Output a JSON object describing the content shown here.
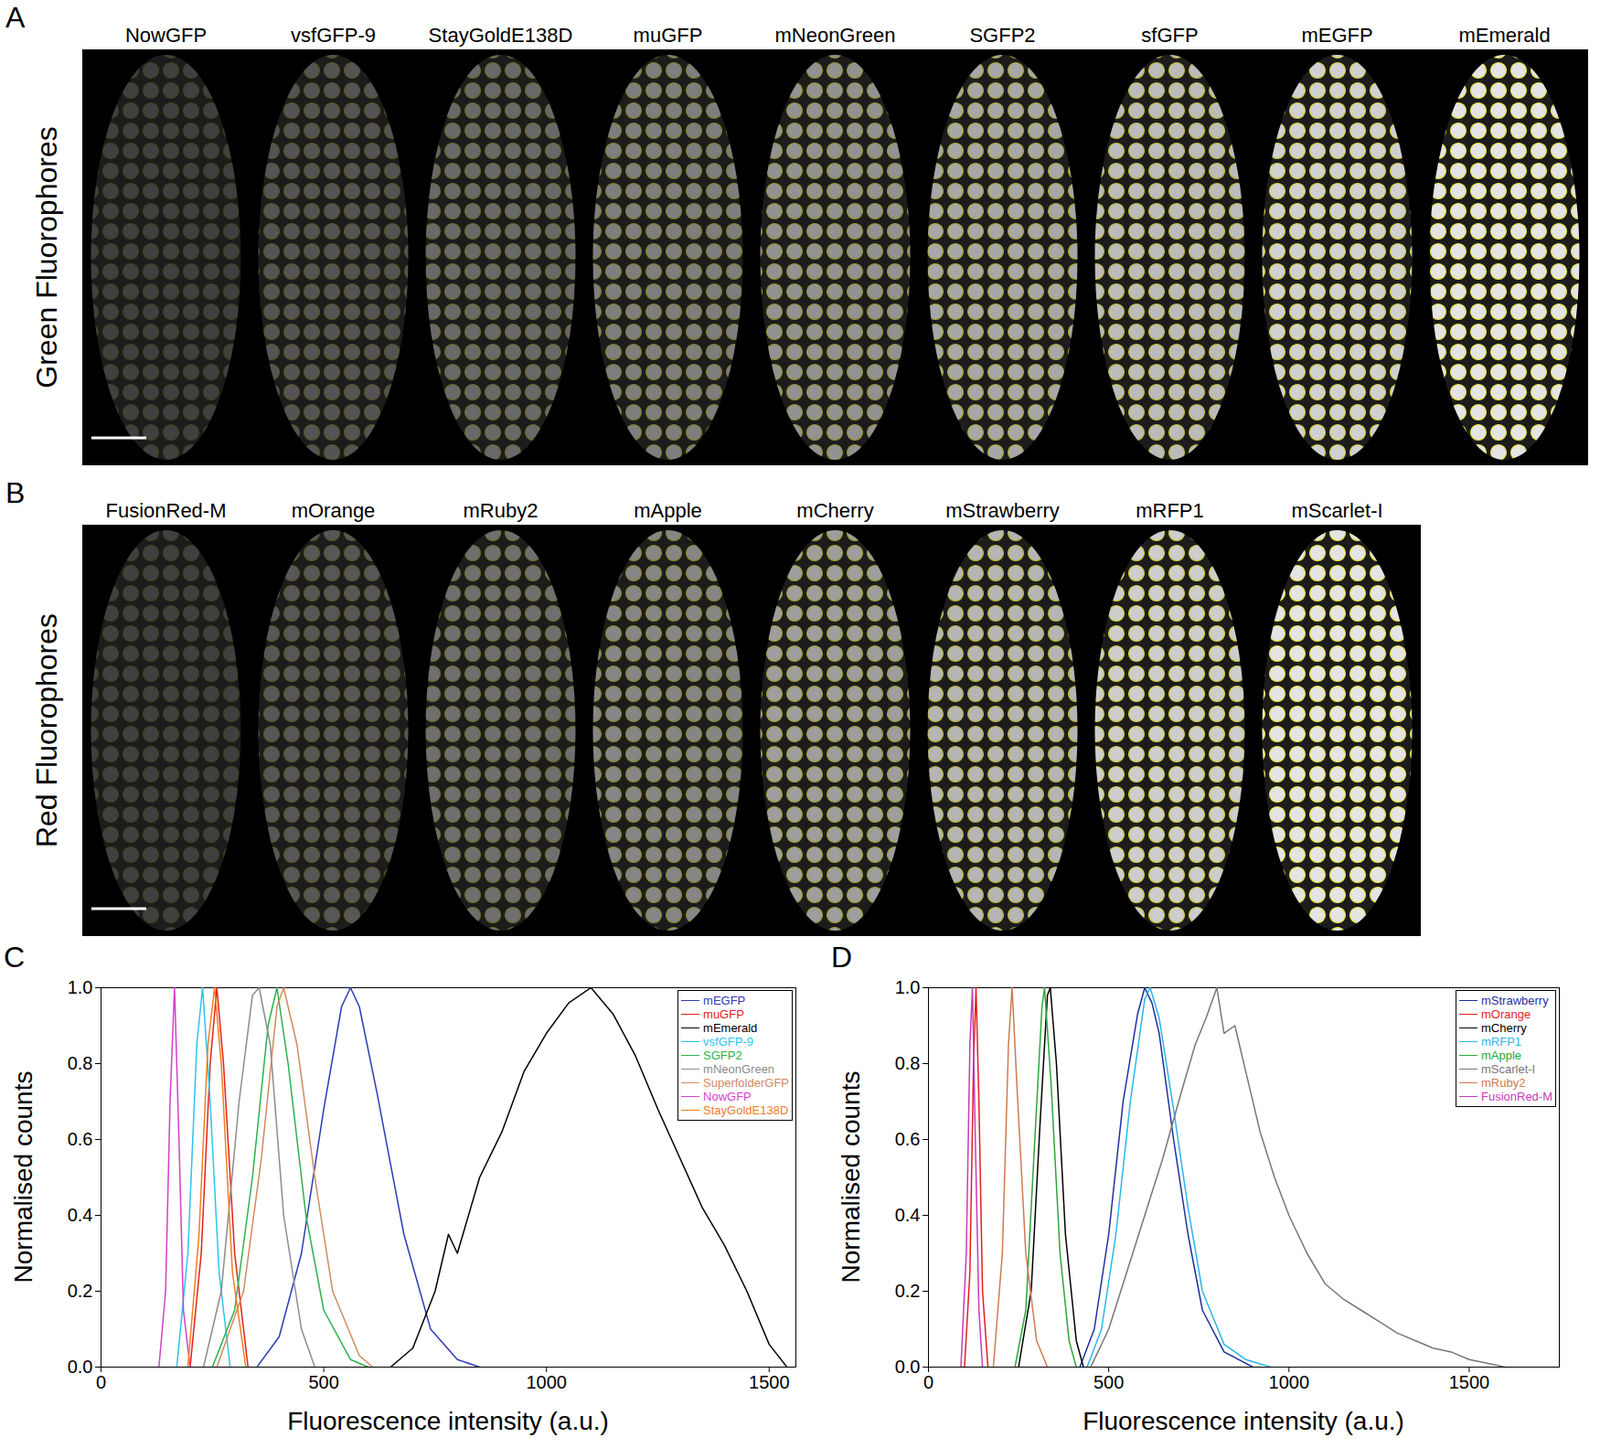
{
  "image_panels": [
    {
      "panel": "A",
      "row_label": "Green Fluorophores",
      "labels": [
        "NowGFP",
        "vsfGFP-9",
        "StayGoldE138D",
        "muGFP",
        "mNeonGreen",
        "SGFP2",
        "sfGFP",
        "mEGFP",
        "mEmerald"
      ]
    },
    {
      "panel": "B",
      "row_label": "Red Fluorophores",
      "labels": [
        "FusionRed-M",
        "mOrange",
        "mRuby2",
        "mApple",
        "mCherry",
        "mStrawberry",
        "mRFP1",
        "mScarlet-I"
      ]
    }
  ],
  "chart_data": [
    {
      "panel": "C",
      "type": "line",
      "x_label": "Fluorescence intensity (a.u.)",
      "y_label": "Normalised counts",
      "xlim": [
        0,
        1560
      ],
      "xticks": [
        0,
        500,
        1000,
        1500
      ],
      "ylim": [
        0,
        1
      ],
      "yticks": [
        {
          "value": 0,
          "label": "0.0"
        },
        {
          "value": 0.2,
          "label": "0.2"
        },
        {
          "value": 0.4,
          "label": "0.4"
        },
        {
          "value": 0.6,
          "label": "0.6"
        },
        {
          "value": 0.8,
          "label": "0.8"
        },
        {
          "value": 1,
          "label": "1.0"
        }
      ],
      "grid": false,
      "legend": "top-right",
      "series": [
        {
          "name": "mEGFP",
          "color": "#2b3cb8",
          "x": [
            350,
            400,
            450,
            500,
            540,
            560,
            580,
            620,
            680,
            740,
            800,
            850
          ],
          "values": [
            0,
            0.08,
            0.3,
            0.68,
            0.95,
            1,
            0.95,
            0.72,
            0.35,
            0.1,
            0.02,
            0
          ]
        },
        {
          "name": "muGFP",
          "color": "#e32119",
          "x": [
            200,
            225,
            245,
            260,
            275,
            300,
            330
          ],
          "values": [
            0,
            0.3,
            0.8,
            1,
            0.8,
            0.3,
            0
          ]
        },
        {
          "name": "mEmerald",
          "color": "#000000",
          "x": [
            650,
            700,
            750,
            780,
            800,
            850,
            900,
            950,
            1000,
            1050,
            1100,
            1150,
            1200,
            1250,
            1300,
            1350,
            1400,
            1450,
            1500,
            1540
          ],
          "values": [
            0,
            0.05,
            0.2,
            0.35,
            0.3,
            0.5,
            0.62,
            0.78,
            0.88,
            0.96,
            1,
            0.93,
            0.82,
            0.68,
            0.55,
            0.42,
            0.32,
            0.2,
            0.06,
            0
          ]
        },
        {
          "name": "vsfGFP-9",
          "color": "#2cc4ef",
          "x": [
            170,
            195,
            215,
            228,
            245,
            265,
            290
          ],
          "values": [
            0,
            0.3,
            0.85,
            1,
            0.7,
            0.25,
            0
          ]
        },
        {
          "name": "SGFP2",
          "color": "#2bb24c",
          "x": [
            250,
            300,
            340,
            375,
            395,
            420,
            460,
            500,
            560,
            600
          ],
          "values": [
            0,
            0.15,
            0.5,
            0.9,
            1,
            0.8,
            0.4,
            0.15,
            0.02,
            0
          ]
        },
        {
          "name": "mNeonGreen",
          "color": "#8c8c8c",
          "x": [
            230,
            270,
            310,
            340,
            355,
            380,
            410,
            450,
            480
          ],
          "values": [
            0,
            0.2,
            0.7,
            0.98,
            1,
            0.85,
            0.4,
            0.1,
            0
          ]
        },
        {
          "name": "SuperfolderGFP",
          "color": "#cf8a5f",
          "x": [
            260,
            320,
            360,
            395,
            410,
            440,
            480,
            520,
            580,
            610
          ],
          "values": [
            0,
            0.2,
            0.55,
            0.95,
            1,
            0.85,
            0.5,
            0.2,
            0.03,
            0
          ]
        },
        {
          "name": "NowGFP",
          "color": "#d63fc9",
          "x": [
            130,
            145,
            155,
            165,
            175,
            185,
            200
          ],
          "values": [
            0,
            0.2,
            0.7,
            1,
            0.6,
            0.15,
            0
          ]
        },
        {
          "name": "StayGoldE138D",
          "color": "#f27b1f",
          "x": [
            195,
            220,
            240,
            255,
            270,
            295,
            325
          ],
          "values": [
            0,
            0.35,
            0.85,
            1,
            0.8,
            0.25,
            0
          ]
        }
      ]
    },
    {
      "panel": "D",
      "type": "line",
      "x_label": "Fluorescence intensity (a.u.)",
      "y_label": "Normalised counts",
      "xlim": [
        0,
        1750
      ],
      "xticks": [
        0,
        500,
        1000,
        1500
      ],
      "ylim": [
        0,
        1
      ],
      "yticks": [
        {
          "value": 0,
          "label": "0.0"
        },
        {
          "value": 0.2,
          "label": "0.2"
        },
        {
          "value": 0.4,
          "label": "0.4"
        },
        {
          "value": 0.6,
          "label": "0.6"
        },
        {
          "value": 0.8,
          "label": "0.8"
        },
        {
          "value": 1,
          "label": "1.0"
        }
      ],
      "grid": false,
      "legend": "top-right",
      "series": [
        {
          "name": "mStrawberry",
          "color": "#1f2f9e",
          "x": [
            420,
            460,
            500,
            540,
            580,
            600,
            620,
            640,
            680,
            720,
            760,
            820,
            900
          ],
          "values": [
            0,
            0.1,
            0.35,
            0.7,
            0.93,
            1,
            0.96,
            0.88,
            0.6,
            0.35,
            0.15,
            0.04,
            0
          ]
        },
        {
          "name": "mOrange",
          "color": "#e61e1e",
          "x": [
            100,
            115,
            125,
            132,
            140,
            150,
            165
          ],
          "values": [
            0,
            0.25,
            0.8,
            1,
            0.7,
            0.2,
            0
          ]
        },
        {
          "name": "mCherry",
          "color": "#000000",
          "x": [
            250,
            285,
            310,
            330,
            338,
            355,
            380,
            410,
            430
          ],
          "values": [
            0,
            0.2,
            0.65,
            0.98,
            1,
            0.8,
            0.35,
            0.07,
            0
          ]
        },
        {
          "name": "mRFP1",
          "color": "#2ab6e9",
          "x": [
            440,
            480,
            520,
            560,
            600,
            615,
            640,
            680,
            720,
            760,
            820,
            880,
            950
          ],
          "values": [
            0,
            0.1,
            0.35,
            0.7,
            0.97,
            1,
            0.92,
            0.68,
            0.42,
            0.2,
            0.06,
            0.02,
            0
          ]
        },
        {
          "name": "mApple",
          "color": "#2aa83a",
          "x": [
            240,
            270,
            295,
            315,
            322,
            340,
            365,
            390,
            410
          ],
          "values": [
            0,
            0.15,
            0.6,
            0.95,
            1,
            0.75,
            0.3,
            0.07,
            0
          ]
        },
        {
          "name": "mScarlet-I",
          "color": "#777777",
          "x": [
            450,
            500,
            550,
            600,
            650,
            700,
            740,
            770,
            800,
            820,
            850,
            880,
            920,
            960,
            1000,
            1050,
            1100,
            1150,
            1200,
            1250,
            1300,
            1350,
            1400,
            1450,
            1500,
            1550,
            1600
          ],
          "values": [
            0,
            0.1,
            0.25,
            0.4,
            0.55,
            0.72,
            0.85,
            0.92,
            1,
            0.88,
            0.9,
            0.78,
            0.62,
            0.5,
            0.4,
            0.3,
            0.22,
            0.18,
            0.15,
            0.12,
            0.09,
            0.07,
            0.05,
            0.04,
            0.02,
            0.01,
            0
          ]
        },
        {
          "name": "mRuby2",
          "color": "#d07a50",
          "x": [
            180,
            205,
            222,
            232,
            245,
            270,
            300,
            330
          ],
          "values": [
            0,
            0.3,
            0.85,
            1,
            0.75,
            0.3,
            0.07,
            0
          ]
        },
        {
          "name": "FusionRed-M",
          "color": "#c63cb9",
          "x": [
            90,
            105,
            115,
            122,
            130,
            140,
            150
          ],
          "values": [
            0,
            0.3,
            0.85,
            1,
            0.6,
            0.15,
            0
          ]
        }
      ]
    }
  ]
}
